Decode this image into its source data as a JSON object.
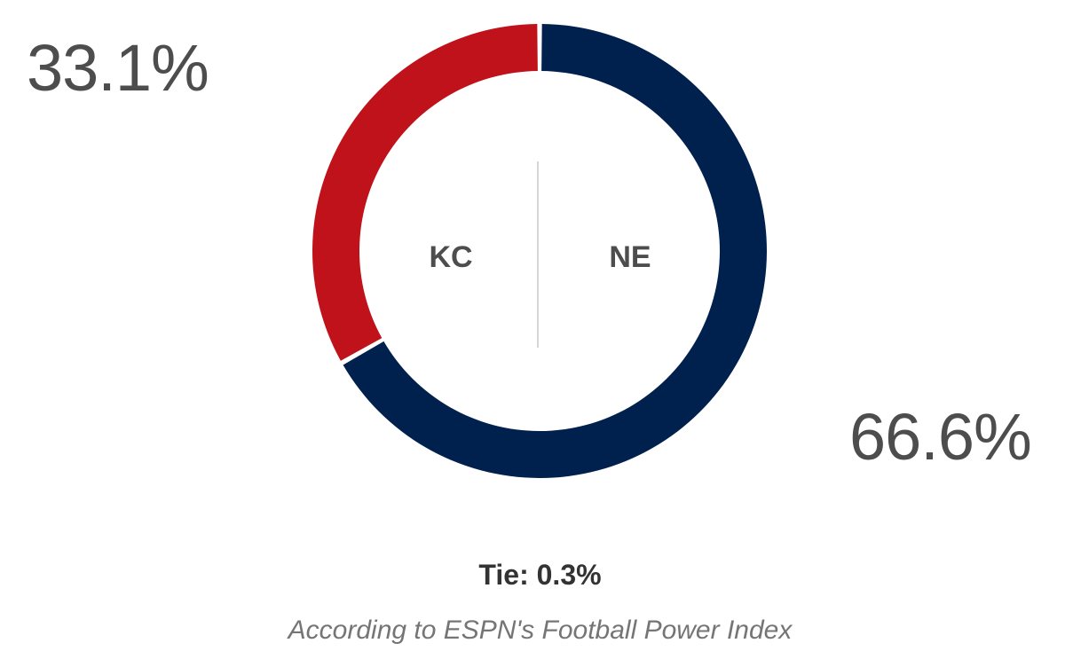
{
  "chart_data": {
    "type": "pie",
    "style": "donut",
    "slices": [
      {
        "label": "KC",
        "value": 33.1,
        "display": "33.1%",
        "color": "#c0121a"
      },
      {
        "label": "NE",
        "value": 66.6,
        "display": "66.6%",
        "color": "#00204e"
      }
    ],
    "tie": {
      "value": 0.3,
      "text": "Tie: 0.3%"
    },
    "source": "According to ESPN's Football Power Index"
  }
}
